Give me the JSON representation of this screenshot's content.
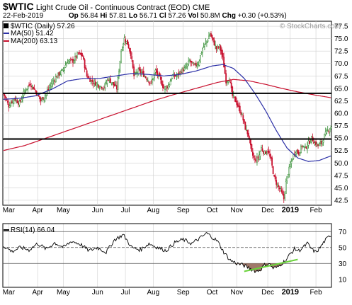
{
  "header": {
    "symbol": "$WTIC",
    "name": "Light Crude Oil - Continuous Contract (EOD)",
    "exchange": "CME",
    "date": "22-Feb-2019",
    "quote": {
      "op": "56.84",
      "hi": "57.81",
      "lo": "56.71",
      "cl": "57.26",
      "vol": "50.8M",
      "chg": "+0.30 (+0.53%)"
    },
    "op_label": "Op",
    "hi_label": "Hi",
    "lo_label": "Lo",
    "cl_label": "Cl",
    "vol_label": "Vol",
    "chg_label": "Chg",
    "copyright": "© StockCharts.com"
  },
  "legend": {
    "price": "$WTIC (Daily) 57.26",
    "ma50": "MA(50) 51.42",
    "ma200": "MA(200) 63.13"
  },
  "rsi_legend": "RSI(14) 66.04",
  "colors": {
    "up": "#2e8b2e",
    "down": "#c8102e",
    "ma50": "#2b2fa6",
    "ma200": "#c8102e",
    "hline": "#000000",
    "grid": "#cfcfcf",
    "rsi_line": "#000000",
    "rsi_fill": "#a0786a",
    "trend": "#6ad23b"
  },
  "chart_data": {
    "type": "candlestick",
    "price": {
      "y_ticks": [
        42.5,
        45.0,
        47.5,
        50.0,
        52.5,
        55.0,
        57.5,
        60.0,
        62.5,
        65.0,
        67.5,
        70.0,
        72.5,
        75.0,
        77.5
      ],
      "ylim": [
        41.5,
        78.5
      ],
      "hlines": [
        64.0,
        54.8
      ],
      "series_keypoints": [
        [
          0,
          64.0
        ],
        [
          5,
          61.5
        ],
        [
          10,
          63.0
        ],
        [
          15,
          62.0
        ],
        [
          20,
          64.5
        ],
        [
          25,
          66.0
        ],
        [
          30,
          64.5
        ],
        [
          35,
          62.5
        ],
        [
          40,
          64.0
        ],
        [
          45,
          66.0
        ],
        [
          50,
          67.5
        ],
        [
          55,
          68.5
        ],
        [
          60,
          70.5
        ],
        [
          65,
          70.5
        ],
        [
          70,
          72.0
        ],
        [
          74,
          71.5
        ],
        [
          78,
          67.5
        ],
        [
          82,
          66.5
        ],
        [
          86,
          66.0
        ],
        [
          90,
          65.5
        ],
        [
          94,
          65.2
        ],
        [
          98,
          67.0
        ],
        [
          102,
          66.0
        ],
        [
          106,
          65.0
        ],
        [
          110,
          72.5
        ],
        [
          113,
          75.0
        ],
        [
          116,
          74.0
        ],
        [
          119,
          72.0
        ],
        [
          122,
          67.5
        ],
        [
          126,
          68.5
        ],
        [
          130,
          68.0
        ],
        [
          134,
          67.0
        ],
        [
          138,
          66.0
        ],
        [
          142,
          68.5
        ],
        [
          146,
          67.0
        ],
        [
          150,
          65.0
        ],
        [
          154,
          65.5
        ],
        [
          158,
          67.5
        ],
        [
          162,
          67.5
        ],
        [
          166,
          68.5
        ],
        [
          170,
          69.0
        ],
        [
          174,
          70.5
        ],
        [
          178,
          69.5
        ],
        [
          182,
          70.0
        ],
        [
          186,
          73.0
        ],
        [
          190,
          74.5
        ],
        [
          193,
          76.0
        ],
        [
          196,
          74.5
        ],
        [
          199,
          73.0
        ],
        [
          202,
          73.5
        ],
        [
          205,
          71.0
        ],
        [
          208,
          66.5
        ],
        [
          211,
          67.0
        ],
        [
          214,
          63.5
        ],
        [
          217,
          62.5
        ],
        [
          220,
          61.0
        ],
        [
          223,
          59.5
        ],
        [
          226,
          57.0
        ],
        [
          229,
          55.5
        ],
        [
          232,
          52.0
        ],
        [
          235,
          50.5
        ],
        [
          238,
          51.0
        ],
        [
          241,
          53.0
        ],
        [
          244,
          52.0
        ],
        [
          247,
          52.5
        ],
        [
          250,
          50.5
        ],
        [
          253,
          47.0
        ],
        [
          256,
          45.5
        ],
        [
          259,
          44.5
        ],
        [
          262,
          42.8
        ],
        [
          264,
          46.0
        ],
        [
          266,
          48.0
        ],
        [
          268,
          49.5
        ],
        [
          270,
          51.0
        ],
        [
          273,
          52.5
        ],
        [
          276,
          52.0
        ],
        [
          279,
          53.5
        ],
        [
          282,
          53.0
        ],
        [
          285,
          54.0
        ],
        [
          288,
          55.0
        ],
        [
          291,
          54.0
        ],
        [
          294,
          53.5
        ],
        [
          297,
          54.0
        ],
        [
          300,
          55.5
        ],
        [
          303,
          56.5
        ],
        [
          306,
          57.26
        ]
      ],
      "ma50": [
        [
          0,
          62.8
        ],
        [
          15,
          63.0
        ],
        [
          30,
          63.5
        ],
        [
          45,
          64.8
        ],
        [
          60,
          66.5
        ],
        [
          75,
          67.0
        ],
        [
          90,
          67.0
        ],
        [
          105,
          67.5
        ],
        [
          120,
          68.0
        ],
        [
          135,
          67.8
        ],
        [
          150,
          67.5
        ],
        [
          165,
          67.8
        ],
        [
          180,
          68.5
        ],
        [
          195,
          69.5
        ],
        [
          205,
          69.8
        ],
        [
          215,
          69.0
        ],
        [
          225,
          67.0
        ],
        [
          235,
          64.0
        ],
        [
          245,
          60.5
        ],
        [
          255,
          56.5
        ],
        [
          265,
          53.0
        ],
        [
          275,
          51.0
        ],
        [
          285,
          50.3
        ],
        [
          295,
          50.5
        ],
        [
          306,
          51.42
        ]
      ],
      "ma200": [
        [
          0,
          52.5
        ],
        [
          20,
          53.5
        ],
        [
          40,
          55.0
        ],
        [
          60,
          56.5
        ],
        [
          80,
          58.0
        ],
        [
          100,
          59.5
        ],
        [
          120,
          61.0
        ],
        [
          140,
          62.5
        ],
        [
          160,
          63.8
        ],
        [
          180,
          65.0
        ],
        [
          200,
          66.2
        ],
        [
          215,
          66.8
        ],
        [
          230,
          66.5
        ],
        [
          245,
          65.8
        ],
        [
          260,
          65.0
        ],
        [
          275,
          64.3
        ],
        [
          290,
          63.7
        ],
        [
          306,
          63.13
        ]
      ]
    },
    "rsi": {
      "y_ticks": [
        10,
        30,
        50,
        70
      ],
      "ylim": [
        0,
        80
      ],
      "hlines": [
        70,
        50,
        30
      ],
      "series_keypoints": [
        [
          0,
          52
        ],
        [
          8,
          45
        ],
        [
          16,
          50
        ],
        [
          24,
          47
        ],
        [
          32,
          55
        ],
        [
          40,
          48
        ],
        [
          48,
          56
        ],
        [
          56,
          50
        ],
        [
          64,
          58
        ],
        [
          72,
          54
        ],
        [
          80,
          46
        ],
        [
          88,
          50
        ],
        [
          96,
          44
        ],
        [
          104,
          60
        ],
        [
          112,
          66
        ],
        [
          120,
          50
        ],
        [
          128,
          47
        ],
        [
          136,
          55
        ],
        [
          144,
          50
        ],
        [
          152,
          46
        ],
        [
          160,
          56
        ],
        [
          168,
          60
        ],
        [
          176,
          55
        ],
        [
          184,
          62
        ],
        [
          190,
          68
        ],
        [
          196,
          62
        ],
        [
          200,
          58
        ],
        [
          206,
          44
        ],
        [
          212,
          34
        ],
        [
          218,
          30
        ],
        [
          224,
          28
        ],
        [
          230,
          24
        ],
        [
          236,
          20
        ],
        [
          240,
          22
        ],
        [
          244,
          28
        ],
        [
          248,
          30
        ],
        [
          252,
          24
        ],
        [
          256,
          25
        ],
        [
          260,
          30
        ],
        [
          264,
          34
        ],
        [
          268,
          42
        ],
        [
          272,
          48
        ],
        [
          276,
          46
        ],
        [
          280,
          50
        ],
        [
          284,
          55
        ],
        [
          288,
          48
        ],
        [
          292,
          44
        ],
        [
          296,
          50
        ],
        [
          300,
          58
        ],
        [
          306,
          66
        ]
      ],
      "trendline": [
        [
          225,
          20
        ],
        [
          275,
          35
        ]
      ]
    },
    "x_labels": [
      "Mar",
      "Apr",
      "May",
      "Jun",
      "Jul",
      "Aug",
      "Sep",
      "Oct",
      "Nov",
      "Dec",
      "2019",
      "Feb"
    ],
    "x_label_index": [
      5,
      32,
      56,
      88,
      114,
      140,
      168,
      195,
      218,
      247,
      268,
      292
    ],
    "n_bars": 307
  }
}
